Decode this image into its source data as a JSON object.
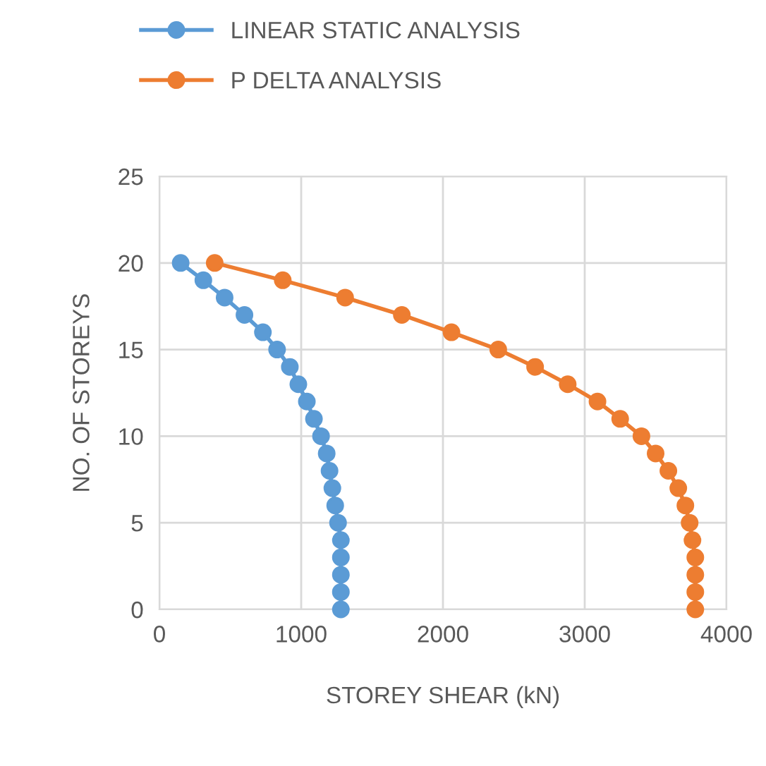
{
  "chart_data": {
    "type": "line",
    "xlabel": "STOREY SHEAR (kN)",
    "ylabel": "NO. OF STOREYS",
    "xlim": [
      0,
      4000
    ],
    "xticks": [
      0,
      1000,
      2000,
      3000,
      4000
    ],
    "ylim": [
      0,
      25
    ],
    "yticks": [
      0,
      5,
      10,
      15,
      20,
      25
    ],
    "grid": true,
    "legend": "top",
    "marker": "circle",
    "line_style": "solid",
    "series": [
      {
        "name": "LINEAR STATIC ANALYSIS",
        "color": "#5b9bd5",
        "x": [
          1280,
          1280,
          1280,
          1280,
          1280,
          1260,
          1240,
          1220,
          1200,
          1180,
          1140,
          1090,
          1040,
          980,
          920,
          830,
          730,
          600,
          460,
          310,
          150
        ],
        "values": [
          0,
          1,
          2,
          3,
          4,
          5,
          6,
          7,
          8,
          9,
          10,
          11,
          12,
          13,
          14,
          15,
          16,
          17,
          18,
          19,
          20
        ]
      },
      {
        "name": "P DELTA ANALYSIS",
        "color": "#ed7d31",
        "x": [
          3780,
          3780,
          3780,
          3780,
          3760,
          3740,
          3710,
          3660,
          3590,
          3500,
          3400,
          3250,
          3090,
          2880,
          2650,
          2390,
          2060,
          1710,
          1310,
          870,
          390
        ],
        "values": [
          0,
          1,
          2,
          3,
          4,
          5,
          6,
          7,
          8,
          9,
          10,
          11,
          12,
          13,
          14,
          15,
          16,
          17,
          18,
          19,
          20
        ]
      }
    ]
  }
}
